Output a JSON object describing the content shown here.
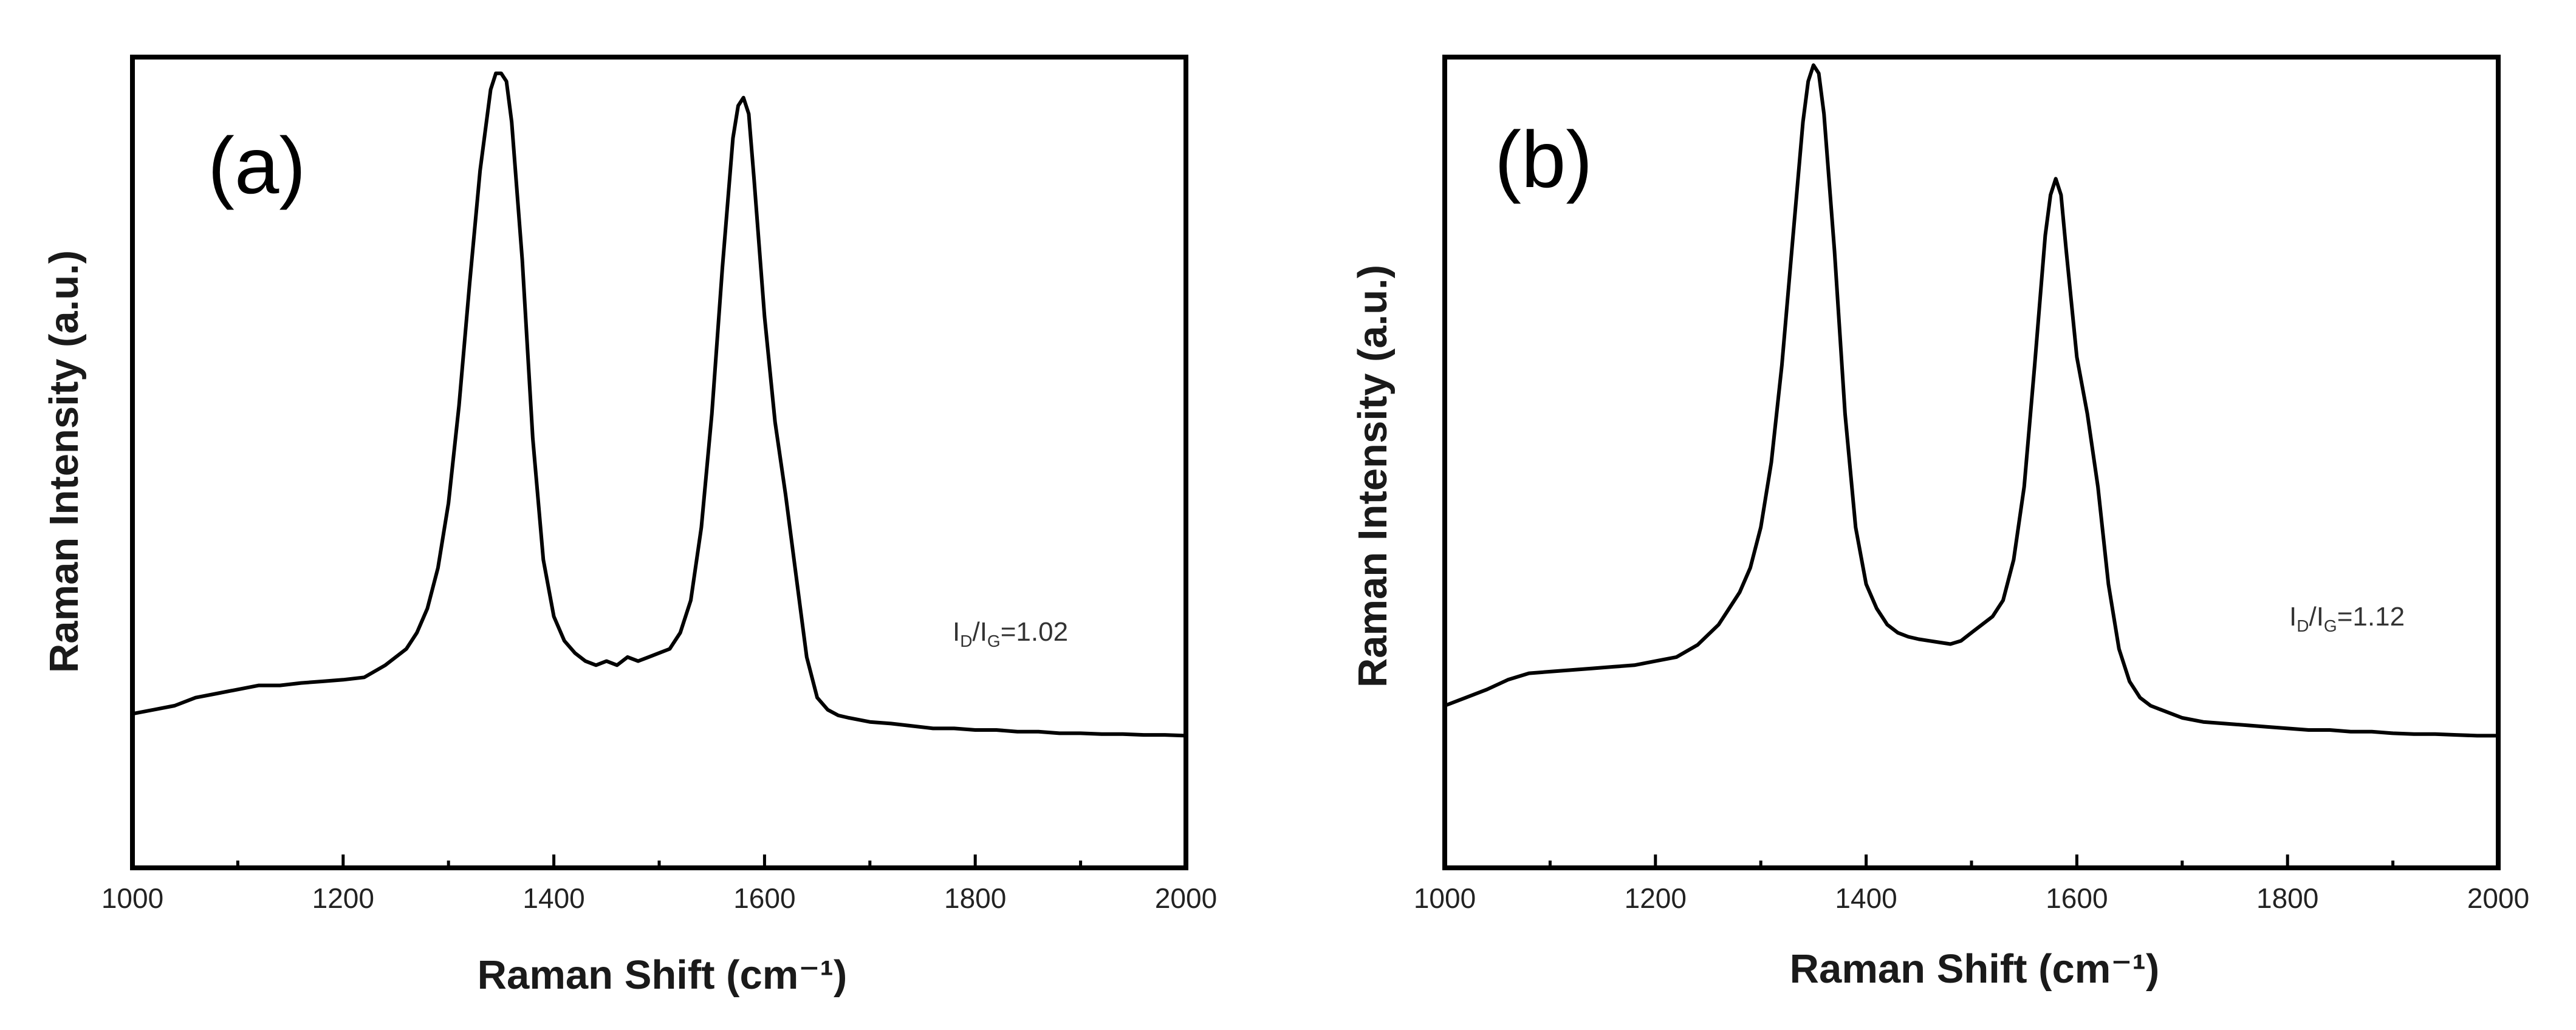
{
  "chart_data": [
    {
      "type": "line",
      "panel_label": "(a)",
      "xlabel": "Raman Shift (cm⁻¹)",
      "ylabel": "Raman Intensity (a.u.)",
      "xlim": [
        1000,
        2000
      ],
      "ylim": [
        0,
        1
      ],
      "x_ticks": [
        1000,
        1200,
        1400,
        1600,
        1800,
        2000
      ],
      "x_minor_ticks": [
        1100,
        1300,
        1500,
        1700,
        1900
      ],
      "y_ticks": [],
      "annotation": {
        "main": "I",
        "sub1": "D",
        "sep": "/I",
        "sub2": "G",
        "value": "=1.02",
        "position": "right"
      },
      "peaks": {
        "D": {
          "x": 1350,
          "y": 0.98
        },
        "G": {
          "x": 1580,
          "y": 0.95
        }
      },
      "series": [
        {
          "name": "spectrum",
          "x": [
            1000,
            1020,
            1040,
            1060,
            1080,
            1100,
            1120,
            1140,
            1160,
            1180,
            1200,
            1220,
            1240,
            1260,
            1270,
            1280,
            1290,
            1300,
            1310,
            1320,
            1330,
            1340,
            1345,
            1350,
            1355,
            1360,
            1370,
            1380,
            1390,
            1400,
            1410,
            1420,
            1430,
            1440,
            1450,
            1460,
            1470,
            1480,
            1490,
            1500,
            1510,
            1520,
            1530,
            1540,
            1550,
            1560,
            1570,
            1575,
            1580,
            1585,
            1590,
            1600,
            1610,
            1620,
            1630,
            1640,
            1650,
            1660,
            1670,
            1680,
            1700,
            1720,
            1740,
            1760,
            1780,
            1800,
            1820,
            1840,
            1860,
            1880,
            1900,
            1920,
            1940,
            1960,
            1980,
            2000
          ],
          "y": [
            0.19,
            0.195,
            0.2,
            0.21,
            0.215,
            0.22,
            0.225,
            0.225,
            0.228,
            0.23,
            0.232,
            0.235,
            0.25,
            0.27,
            0.29,
            0.32,
            0.37,
            0.45,
            0.57,
            0.72,
            0.86,
            0.96,
            0.98,
            0.98,
            0.97,
            0.92,
            0.75,
            0.53,
            0.38,
            0.31,
            0.28,
            0.265,
            0.255,
            0.25,
            0.255,
            0.25,
            0.26,
            0.255,
            0.26,
            0.265,
            0.27,
            0.29,
            0.33,
            0.42,
            0.56,
            0.74,
            0.9,
            0.94,
            0.95,
            0.93,
            0.85,
            0.68,
            0.55,
            0.46,
            0.36,
            0.26,
            0.21,
            0.195,
            0.188,
            0.185,
            0.18,
            0.178,
            0.175,
            0.172,
            0.172,
            0.17,
            0.17,
            0.168,
            0.168,
            0.166,
            0.166,
            0.165,
            0.165,
            0.164,
            0.164,
            0.163
          ]
        }
      ]
    },
    {
      "type": "line",
      "panel_label": "(b)",
      "xlabel": "Raman Shift (cm⁻¹)",
      "ylabel": "Raman Intensity (a.u.)",
      "xlim": [
        1000,
        2000
      ],
      "ylim": [
        0,
        1
      ],
      "x_ticks": [
        1000,
        1200,
        1400,
        1600,
        1800,
        2000
      ],
      "x_minor_ticks": [
        1100,
        1300,
        1500,
        1700,
        1900
      ],
      "y_ticks": [],
      "annotation": {
        "main": "I",
        "sub1": "D",
        "sep": "/I",
        "sub2": "G",
        "value": "=1.12",
        "position": "right"
      },
      "peaks": {
        "D": {
          "x": 1350,
          "y": 0.99
        },
        "G": {
          "x": 1580,
          "y": 0.85
        }
      },
      "series": [
        {
          "name": "spectrum",
          "x": [
            1000,
            1020,
            1040,
            1060,
            1080,
            1100,
            1120,
            1140,
            1160,
            1180,
            1200,
            1220,
            1240,
            1260,
            1270,
            1280,
            1290,
            1300,
            1310,
            1320,
            1330,
            1340,
            1345,
            1350,
            1355,
            1360,
            1370,
            1380,
            1390,
            1400,
            1410,
            1420,
            1430,
            1440,
            1450,
            1460,
            1470,
            1480,
            1490,
            1500,
            1510,
            1520,
            1530,
            1540,
            1550,
            1560,
            1570,
            1575,
            1580,
            1585,
            1590,
            1600,
            1610,
            1620,
            1630,
            1640,
            1650,
            1660,
            1670,
            1680,
            1700,
            1720,
            1740,
            1760,
            1780,
            1800,
            1820,
            1840,
            1860,
            1880,
            1900,
            1920,
            1940,
            1960,
            1980,
            2000
          ],
          "y": [
            0.2,
            0.21,
            0.22,
            0.232,
            0.24,
            0.242,
            0.244,
            0.246,
            0.248,
            0.25,
            0.255,
            0.26,
            0.275,
            0.3,
            0.32,
            0.34,
            0.37,
            0.42,
            0.5,
            0.62,
            0.77,
            0.92,
            0.97,
            0.99,
            0.98,
            0.93,
            0.76,
            0.56,
            0.42,
            0.35,
            0.32,
            0.3,
            0.29,
            0.285,
            0.282,
            0.28,
            0.278,
            0.276,
            0.28,
            0.29,
            0.3,
            0.31,
            0.33,
            0.38,
            0.47,
            0.62,
            0.78,
            0.83,
            0.85,
            0.83,
            0.76,
            0.63,
            0.56,
            0.47,
            0.35,
            0.27,
            0.23,
            0.21,
            0.2,
            0.195,
            0.185,
            0.18,
            0.178,
            0.176,
            0.174,
            0.172,
            0.17,
            0.17,
            0.168,
            0.168,
            0.166,
            0.165,
            0.165,
            0.164,
            0.163,
            0.163
          ]
        }
      ]
    }
  ]
}
